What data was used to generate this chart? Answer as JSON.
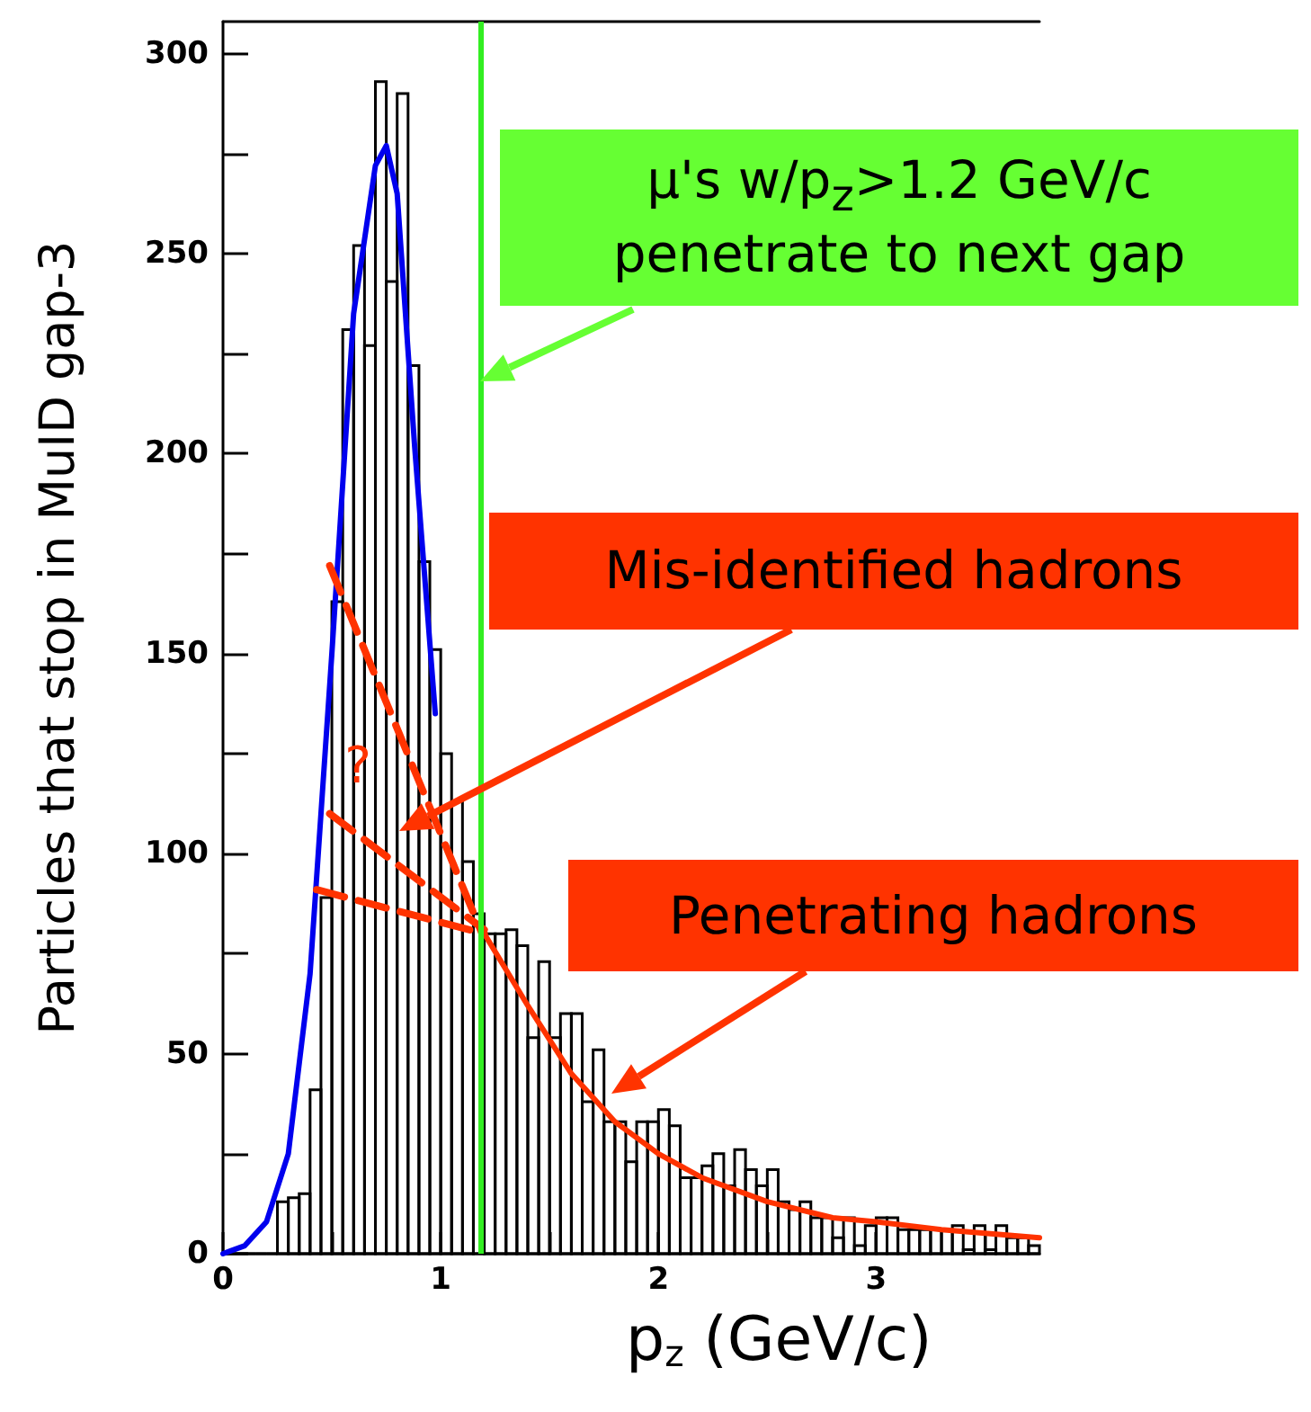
{
  "chart_data": {
    "type": "histogram",
    "xlabel": "p$_{z}$ (GeV/c)",
    "ylabel": "Particles that stop in MuID gap-3",
    "bins": [
      0,
      0.05,
      0.1,
      0.15,
      0.2,
      0.25,
      0.3,
      0.35,
      0.4,
      0.45,
      0.5,
      0.55,
      0.6,
      0.65,
      0.7,
      0.75,
      0.8,
      0.85,
      0.9,
      0.95,
      1,
      1.05,
      1.1,
      1.15,
      1.2,
      1.25,
      1.3,
      1.35,
      1.4,
      1.45,
      1.5,
      1.55,
      1.6,
      1.65,
      1.7,
      1.75,
      1.8,
      1.85,
      1.9,
      1.95,
      2,
      2.05,
      2.1,
      2.15,
      2.2,
      2.25,
      2.3,
      2.35,
      2.4,
      2.45,
      2.5,
      2.55,
      2.6,
      2.65,
      2.7,
      2.75,
      2.8,
      2.85,
      2.9,
      2.95,
      3,
      3.05,
      3.1,
      3.15,
      3.2,
      3.25,
      3.3,
      3.35,
      3.4,
      3.45,
      3.5,
      3.55,
      3.6,
      3.65,
      3.7,
      3.75
    ],
    "values": [
      0,
      0,
      0,
      0,
      0,
      13,
      14,
      15,
      41,
      89,
      163,
      231,
      252,
      227,
      293,
      243,
      290,
      222,
      173,
      151,
      125,
      113,
      98,
      85,
      80,
      80,
      81,
      77,
      54,
      73,
      54,
      60,
      60,
      38,
      51,
      33,
      33,
      23,
      33,
      33,
      36,
      32,
      19,
      19,
      22,
      25,
      17,
      26,
      21,
      17,
      21,
      13,
      11,
      13,
      9,
      9,
      4,
      9,
      2,
      7,
      9,
      9,
      6,
      6,
      6,
      6,
      6,
      7,
      1,
      7,
      1,
      7,
      4,
      4,
      2
    ],
    "color": "#000000",
    "series": [
      {
        "type": "line",
        "color": "#0000ee",
        "line_style": "solid",
        "x": [
          0,
          0.1,
          0.2,
          0.3,
          0.4,
          0.5,
          0.6,
          0.7,
          0.75,
          0.8,
          0.88,
          0.975
        ],
        "values": [
          0,
          2,
          8,
          25,
          70,
          150,
          235,
          272,
          277,
          265,
          202,
          135
        ]
      },
      {
        "type": "line",
        "color": "#ff3300",
        "line_style": "solid",
        "x": [
          1.2,
          1.4,
          1.6,
          1.8,
          2.0,
          2.2,
          2.5,
          2.8,
          3.0,
          3.3,
          3.75
        ],
        "values": [
          80,
          62,
          45,
          33,
          25,
          19,
          13,
          9,
          8,
          6,
          4
        ]
      },
      {
        "type": "line",
        "color": "#ff3300",
        "line_style": "dashed",
        "x": [
          0.49,
          1.19
        ],
        "values": [
          172,
          80
        ]
      },
      {
        "type": "line",
        "color": "#ff3300",
        "line_style": "dashed",
        "x": [
          0.49,
          1.2
        ],
        "values": [
          110,
          81
        ]
      },
      {
        "type": "line",
        "color": "#ff3300",
        "line_style": "dashed",
        "x": [
          0.43,
          1.2
        ],
        "values": [
          91,
          80
        ]
      }
    ],
    "ref_lines": [
      {
        "axis": "x",
        "value": 1.18,
        "color": "#33ee22"
      }
    ],
    "annotations": [
      "μ's w/p$_{z}$>1.2 GeV/c\npenetrate to next gap",
      "Mis-identified hadrons",
      "Penetrating hadrons",
      "?"
    ],
    "xlim": [
      0,
      3.75
    ],
    "ylim": [
      0,
      308
    ],
    "xticks": [
      0,
      {
        "value": 0.5,
        "label": null
      },
      1,
      {
        "value": 1.5,
        "label": null
      },
      2,
      {
        "value": 2.5,
        "label": null
      },
      3,
      {
        "value": 3.5,
        "label": null
      }
    ],
    "yticks": [
      0,
      {
        "value": 25,
        "label": null
      },
      50,
      {
        "value": 75,
        "label": null
      },
      100,
      {
        "value": 125,
        "label": null
      },
      150,
      {
        "value": 175,
        "label": null
      },
      200,
      {
        "value": 225,
        "label": null
      },
      250,
      {
        "value": 275,
        "label": null
      },
      300
    ]
  }
}
